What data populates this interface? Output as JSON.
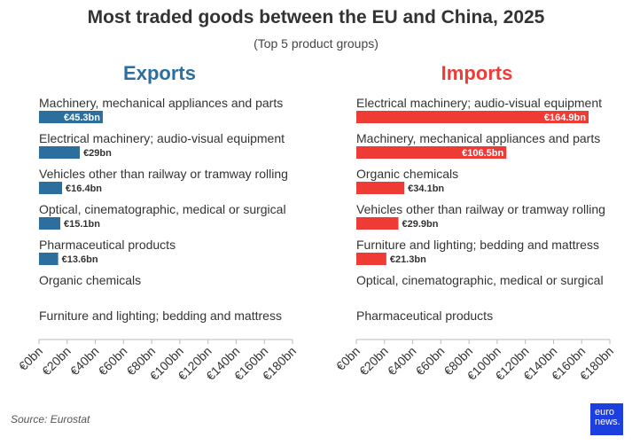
{
  "chart_data": {
    "type": "bar",
    "orientation": "horizontal",
    "title": "Most traded goods between the EU and China, 2025",
    "subtitle": "(Top 5 product groups)",
    "source": "Source: Eurostat",
    "xlim": [
      0,
      180
    ],
    "ticks": [
      "€0bn",
      "€20bn",
      "€40bn",
      "€60bn",
      "€80bn",
      "€100bn",
      "€120bn",
      "€140bn",
      "€160bn",
      "€180bn"
    ],
    "tick_values": [
      0,
      20,
      40,
      60,
      80,
      100,
      120,
      140,
      160,
      180
    ],
    "panels": [
      {
        "name": "Exports",
        "color": "#2c6e9e",
        "categories": [
          "Machinery, mechanical appliances and parts",
          "Electrical machinery; audio-visual equipment",
          "Vehicles other than railway or tramway rolling stock",
          "Optical, cinematographic, medical or surgical",
          "Pharmaceutical products",
          "Organic chemicals",
          "Furniture and lighting; bedding and mattress"
        ],
        "values": [
          45.3,
          29,
          16.4,
          15.1,
          13.6,
          null,
          null
        ],
        "labels": [
          "€45.3bn",
          "€29bn",
          "€16.4bn",
          "€15.1bn",
          "€13.6bn",
          "",
          ""
        ]
      },
      {
        "name": "Imports",
        "color": "#ef3b36",
        "categories": [
          "Electrical machinery; audio-visual equipment",
          "Machinery, mechanical appliances and parts",
          "Organic chemicals",
          "Vehicles other than railway or tramway rolling stock",
          "Furniture and lighting; bedding and mattress",
          "Optical, cinematographic, medical or surgical",
          "Pharmaceutical products"
        ],
        "values": [
          164.9,
          106.5,
          34.1,
          29.9,
          21.3,
          null,
          null
        ],
        "labels": [
          "€164.9bn",
          "€106.5bn",
          "€34.1bn",
          "€29.9bn",
          "€21.3bn",
          "",
          ""
        ]
      }
    ]
  },
  "logo": {
    "line1": "euro",
    "line2": "news."
  }
}
